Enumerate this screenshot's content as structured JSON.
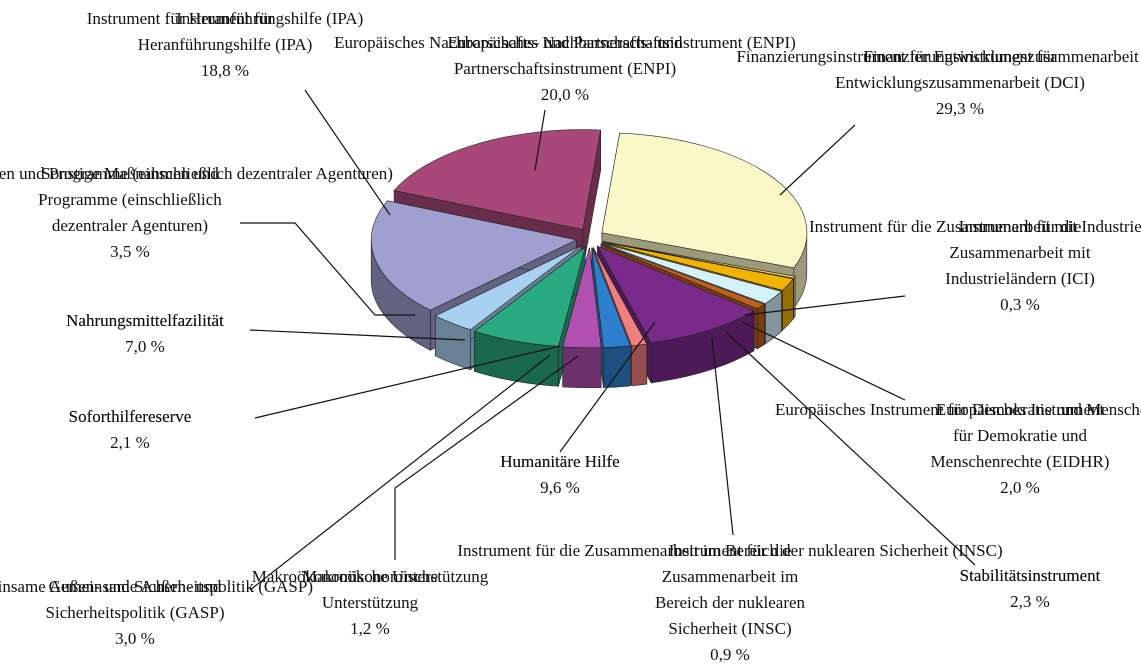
{
  "chart_data": {
    "type": "pie",
    "three_d": true,
    "exploded": true,
    "categories": [
      "Finanzierungsinstrument für\nEntwicklungszusammenarbeit (DCI)",
      "Instrument für die\nZusammenarbeit mit\nIndustrieländern (ICI)",
      "Europäisches Instrument\nfür Demokratie und\nMenschenrechte (EIDHR)",
      "Stabilitätsinstrument",
      "Instrument für die\nZusammenarbeit im\nBereich der nuklearen\nSicherheit (INSC)",
      "Humanitäre Hilfe",
      "Makroökonomische\nUnterstützung",
      "Soforthilfereserve",
      "Gemeinsame Außen- und\nSicherheitspolitik (GASP)",
      "Nahrungsmittelfazilität",
      "Sonstige Maßnahmen und\nProgramme (einschließlich\ndezentraler Agenturen)",
      "Instrument für\nHeranführungshilfe (IPA)",
      "Europäisches Nachbarschafts- und\nPartnerschaftsinstrument (ENPI)"
    ],
    "values": [
      29.3,
      0.3,
      2.0,
      2.3,
      0.9,
      9.6,
      1.2,
      2.1,
      3.0,
      7.0,
      3.5,
      18.8,
      20.0
    ],
    "value_labels": [
      "29,3 %",
      "0,3 %",
      "2,0 %",
      "2,3 %",
      "0,9 %",
      "9,6 %",
      "1,2 %",
      "2,1 %",
      "3,0 %",
      "7,0 %",
      "3,5 %",
      "18,8 %",
      "20,0 %"
    ],
    "colors": [
      "#fbf8c8",
      "#ffe34d",
      "#f0b400",
      "#d4f0f8",
      "#c0601c",
      "#7a2a8a",
      "#f08080",
      "#2f7fcf",
      "#b050b0",
      "#2aaa80",
      "#a8d0f0",
      "#a0a0d0",
      "#a84878"
    ]
  }
}
